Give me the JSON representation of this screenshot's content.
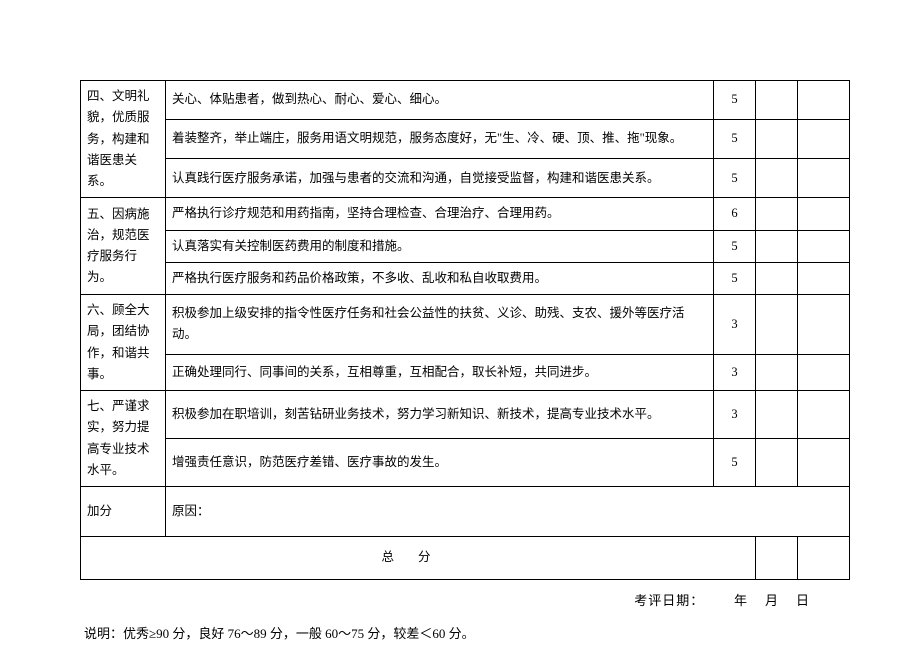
{
  "table": {
    "sections": [
      {
        "category": "四、文明礼貌，优质服务，构建和谐医患关系。",
        "rows": [
          {
            "desc": "关心、体贴患者，做到热心、耐心、爱心、细心。",
            "score": "5"
          },
          {
            "desc": "着装整齐，举止端庄，服务用语文明规范，服务态度好，无\"生、冷、硬、顶、推、拖\"现象。",
            "score": "5"
          },
          {
            "desc": "认真践行医疗服务承诺，加强与患者的交流和沟通，自觉接受监督，构建和谐医患关系。",
            "score": "5"
          }
        ]
      },
      {
        "category": "五、因病施治，规范医疗服务行为。",
        "rows": [
          {
            "desc": "严格执行诊疗规范和用药指南，坚持合理检查、合理治疗、合理用药。",
            "score": "6"
          },
          {
            "desc": "认真落实有关控制医药费用的制度和措施。",
            "score": "5"
          },
          {
            "desc": "严格执行医疗服务和药品价格政策，不多收、乱收和私自收取费用。",
            "score": "5"
          }
        ]
      },
      {
        "category": "六、顾全大局，团结协作，和谐共事。",
        "rows": [
          {
            "desc": "积极参加上级安排的指令性医疗任务和社会公益性的扶贫、义诊、助残、支农、援外等医疗活动。",
            "score": "3"
          },
          {
            "desc": "正确处理同行、同事间的关系，互相尊重，互相配合，取长补短，共同进步。",
            "score": "3"
          }
        ]
      },
      {
        "category": "七、严谨求实，努力提高专业技术水平。",
        "rows": [
          {
            "desc": "积极参加在职培训，刻苦钻研业务技术，努力学习新知识、新技术，提高专业技术水平。",
            "score": "3"
          },
          {
            "desc": "增强责任意识，防范医疗差错、医疗事故的发生。",
            "score": "5"
          }
        ]
      }
    ],
    "bonus": {
      "label": "加分",
      "reason_label": "原因："
    },
    "total_label": "总分"
  },
  "footer": {
    "date_label": "考评日期：",
    "year": "年",
    "month": "月",
    "day": "日"
  },
  "explain": "说明：优秀≥90 分，良好 76～89 分，一般 60～75 分，较差＜60 分。"
}
